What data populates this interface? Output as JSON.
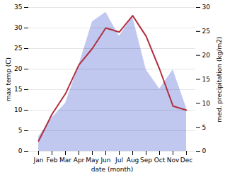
{
  "chart_data": {
    "type": "line",
    "categories": [
      "Jan",
      "Feb",
      "Mar",
      "Apr",
      "May",
      "Jun",
      "Jul",
      "Aug",
      "Sep",
      "Oct",
      "Nov",
      "Dec"
    ],
    "xlabel": "date (month)",
    "ylabel": "max temp (C)",
    "y2label": "med. precipitation (kg/m2)",
    "series": [
      {
        "type": "line",
        "color": "#b03040",
        "values": [
          2.5,
          9.0,
          14.0,
          21.0,
          25.0,
          30.0,
          29.0,
          33.0,
          28.0,
          20.0,
          11.0,
          10.0
        ]
      },
      {
        "type": "area",
        "color": "#c0c8f0",
        "axis": "y2",
        "values": [
          3.0,
          7.0,
          10.0,
          18.0,
          27.0,
          29.0,
          24.0,
          28.0,
          17.0,
          13.0,
          17.0,
          9.0
        ]
      }
    ],
    "ylim": [
      0,
      35
    ],
    "yticks": [
      0,
      5,
      10,
      15,
      20,
      25,
      30,
      35
    ],
    "y2lim": [
      0,
      30
    ],
    "y2ticks": [
      0,
      5,
      10,
      15,
      20,
      25,
      30
    ],
    "grid": true
  }
}
